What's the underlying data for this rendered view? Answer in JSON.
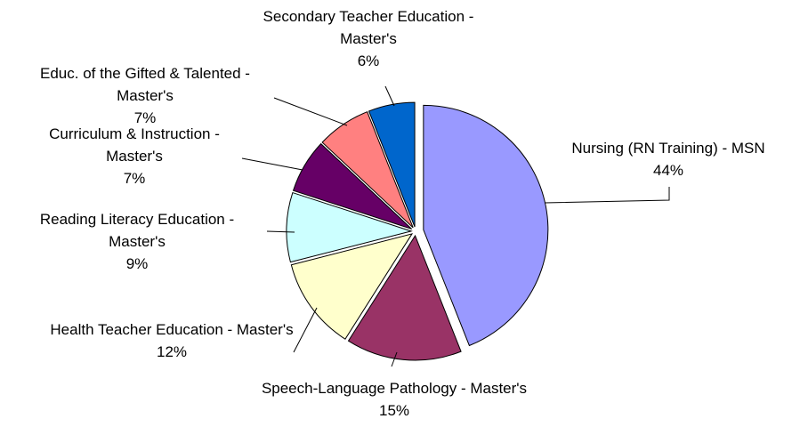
{
  "chart_data": {
    "type": "pie",
    "categories": [
      "Nursing (RN Training) - MSN",
      "Speech-Language Pathology - Master's",
      "Health Teacher Education - Master's",
      "Reading Literacy Education - Master's",
      "Curriculum & Instruction - Master's",
      "Educ. of the Gifted & Talented - Master's",
      "Secondary Teacher Education - Master's"
    ],
    "values": [
      44,
      15,
      12,
      9,
      7,
      7,
      6
    ],
    "value_labels": [
      "44%",
      "15%",
      "12%",
      "9%",
      "7%",
      "7%",
      "6%"
    ],
    "colors": [
      "#9999ff",
      "#993366",
      "#ffffcc",
      "#ccffff",
      "#660066",
      "#ff8080",
      "#0066cc"
    ]
  }
}
